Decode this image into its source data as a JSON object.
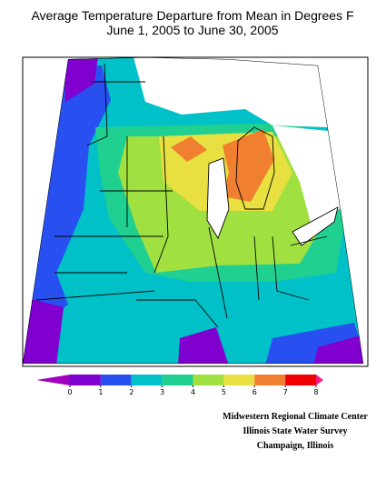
{
  "title": [
    "Average Temperature Departure from Mean in Degrees F",
    "June 1, 2005 to June 30, 2005"
  ],
  "legend": {
    "ticks": [
      0,
      1,
      2,
      3,
      4,
      5,
      6,
      7,
      8
    ],
    "colors": [
      "#8000d0",
      "#2850f0",
      "#00c0c8",
      "#20d090",
      "#a0e040",
      "#e8e040",
      "#f08030",
      "#f00000"
    ],
    "low_color": "#a000c0",
    "high_color": "#f02080"
  },
  "credits": [
    "Midwestern Regional Climate Center",
    "Illinois State Water Survey",
    "Champaign, Illinois"
  ]
}
